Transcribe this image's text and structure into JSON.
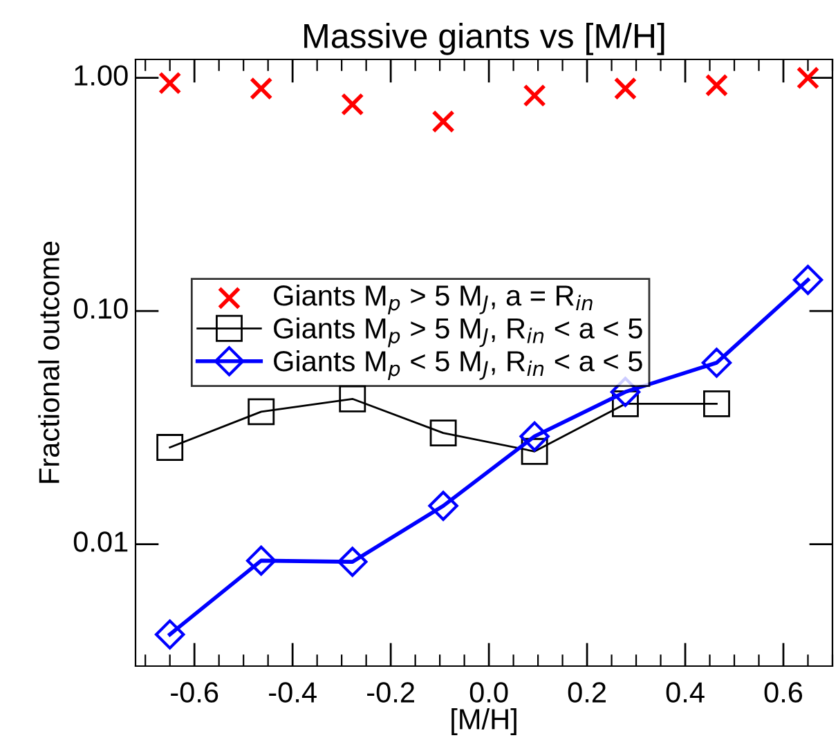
{
  "chart_data": {
    "type": "line",
    "title": "Massive giants vs [M/H]",
    "xlabel": "[M/H]",
    "ylabel": "Fractional outcome",
    "x": [
      -0.65,
      -0.464,
      -0.278,
      -0.093,
      0.093,
      0.278,
      0.464,
      0.65
    ],
    "series": [
      {
        "name": "Giants M$_{p}$ > 5 M$_{J}$, a = R$_{in}$",
        "type": "scatter",
        "color": "#ff0000",
        "marker": "cross",
        "values": [
          0.95,
          0.9,
          0.77,
          0.65,
          0.84,
          0.9,
          0.93,
          1.0
        ]
      },
      {
        "name": "Giants M$_{p}$ > 5 M$_{J}$, R$_{in}$ < a < 5",
        "color": "#000000",
        "marker": "square",
        "values": [
          0.026,
          0.037,
          0.042,
          0.03,
          0.025,
          0.04,
          0.04,
          null
        ]
      },
      {
        "name": "Giants M$_{p}$ < 5 M$_{J}$, R$_{in}$ < a < 5",
        "color": "#0000ff",
        "marker": "diamond",
        "values": [
          0.0041,
          0.0085,
          0.0084,
          0.0146,
          0.029,
          0.045,
          0.06,
          0.136
        ]
      }
    ],
    "log": "y",
    "xlim": [
      -0.72,
      0.7
    ],
    "xticks": [
      {
        "value": -0.6,
        "label": "-0.6"
      },
      {
        "value": -0.4,
        "label": "-0.4"
      },
      {
        "value": -0.2,
        "label": "-0.2"
      },
      {
        "value": 0.0,
        "label": "0.0"
      },
      0.2,
      0.4,
      0.6
    ],
    "ylim": [
      0.003,
      1.2
    ],
    "yticks": [
      0.01,
      {
        "value": 0.1,
        "label": "0.10"
      },
      {
        "value": 1,
        "label": "1.00"
      }
    ],
    "grid": false,
    "legend": "center left"
  }
}
